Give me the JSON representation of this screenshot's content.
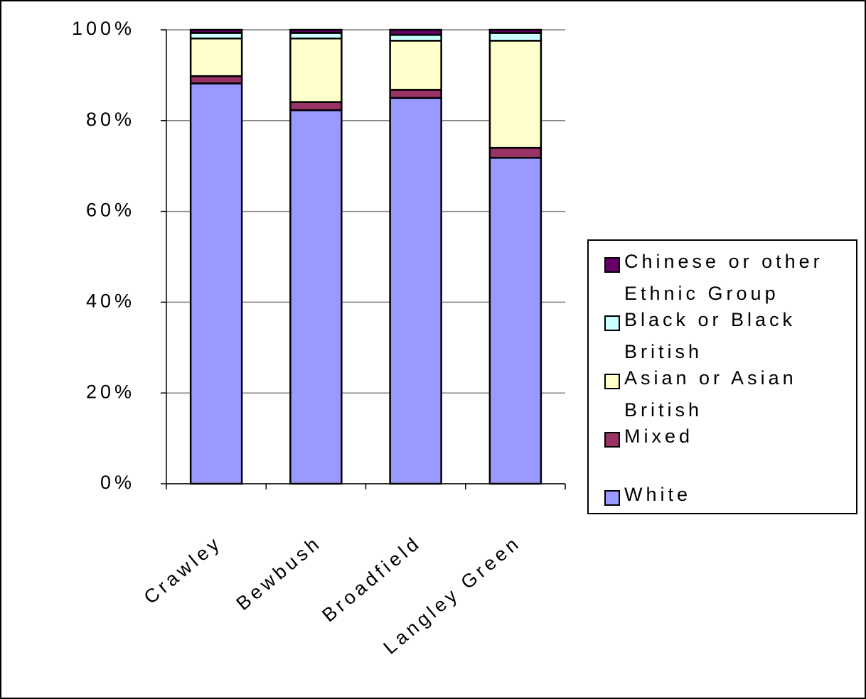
{
  "chart_data": {
    "type": "stacked_bar",
    "categories": [
      "Crawley",
      "Bewbush",
      "Broadfield",
      "Langley Green"
    ],
    "series": [
      {
        "name": "White",
        "color": "#9999ff",
        "values": [
          88.2,
          82.3,
          85.0,
          71.8
        ]
      },
      {
        "name": "Mixed",
        "color": "#993366",
        "values": [
          1.6,
          1.8,
          1.8,
          2.2
        ]
      },
      {
        "name": "Asian or Asian British",
        "color": "#ffffcc",
        "values": [
          8.3,
          14.0,
          10.8,
          23.6
        ]
      },
      {
        "name": "Black or Black British",
        "color": "#ccffff",
        "values": [
          1.2,
          1.2,
          1.3,
          1.7
        ]
      },
      {
        "name": "Chinese or other Ethnic Group",
        "color": "#660066",
        "values": [
          0.7,
          0.7,
          1.1,
          0.7
        ]
      }
    ],
    "ylim": [
      0,
      100
    ],
    "yticks": [
      {
        "value": 0,
        "label": "0%"
      },
      {
        "value": 20,
        "label": "20%"
      },
      {
        "value": 40,
        "label": "40%"
      },
      {
        "value": 60,
        "label": "60%"
      },
      {
        "value": 80,
        "label": "80%"
      },
      {
        "value": 100,
        "label": "100%"
      }
    ],
    "grid": true,
    "legend": "right"
  }
}
